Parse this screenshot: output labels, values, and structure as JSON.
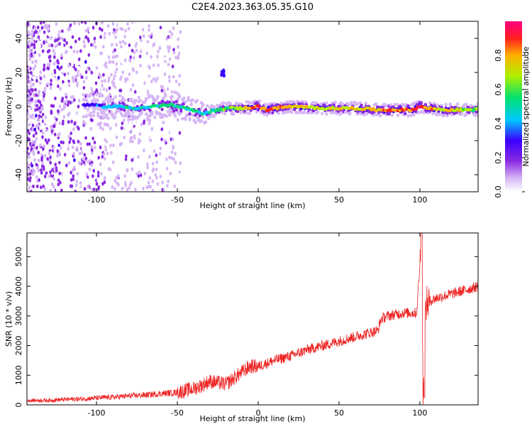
{
  "title": "C2E4.2023.363.05.35.G10",
  "chart_data": [
    {
      "type": "heatmap",
      "title": "",
      "xlabel": "Height of straight line (km)",
      "ylabel": "Frequency (Hz)",
      "xlim": [
        -143,
        136
      ],
      "ylim": [
        -50,
        50
      ],
      "x_ticks": [
        "-100",
        "-50",
        "0",
        "50",
        "100"
      ],
      "y_ticks": [
        "-40",
        "-20",
        "0",
        "20",
        "40"
      ],
      "colorbar": {
        "label": "Normalized spectral amplitude",
        "range": [
          0,
          1
        ],
        "ticks": [
          "0.0",
          "0.2",
          "0.4",
          "0.6",
          "0.8"
        ],
        "colormap": [
          "#ffffff",
          "#d6b6f5",
          "#8a2be2",
          "#3a00ff",
          "#00c8ff",
          "#00e070",
          "#b0f000",
          "#ffb000",
          "#ff2020",
          "#ff0080"
        ]
      },
      "ridge": {
        "x": [
          -105,
          -95,
          -85,
          -75,
          -65,
          -55,
          -45,
          -35,
          -30,
          -20,
          -10,
          0,
          5,
          10,
          20,
          40,
          60,
          75,
          85,
          95,
          100,
          105,
          115,
          125,
          136
        ],
        "frequency": [
          1,
          0,
          0,
          -1,
          0,
          1,
          -1,
          -4,
          -3,
          -1,
          -1,
          0,
          -2,
          -1,
          0,
          -1,
          -1,
          -2,
          -2,
          -2,
          0,
          -1,
          -2,
          -2,
          -2
        ],
        "amplitude": [
          0.35,
          0.45,
          0.5,
          0.5,
          0.55,
          0.6,
          0.55,
          0.5,
          0.55,
          0.6,
          0.7,
          0.95,
          0.9,
          0.85,
          0.8,
          0.75,
          0.75,
          0.8,
          0.85,
          0.9,
          0.95,
          0.85,
          0.75,
          0.7,
          0.65
        ]
      },
      "grid": false
    },
    {
      "type": "line",
      "title": "",
      "xlabel": "Height of straight line (km)",
      "ylabel": "SNR (10 * v/v)",
      "xlim": [
        -143,
        136
      ],
      "ylim": [
        0,
        5800
      ],
      "x_ticks": [
        "-100",
        "-50",
        "0",
        "50",
        "100"
      ],
      "y_ticks": [
        "0",
        "1000",
        "2000",
        "3000",
        "4000",
        "5000"
      ],
      "color": "#ee2222",
      "series": [
        {
          "x": [
            -143,
            -130,
            -120,
            -110,
            -100,
            -90,
            -80,
            -70,
            -60,
            -50,
            -45,
            -40,
            -35,
            -30,
            -25,
            -20,
            -15,
            -10,
            -5,
            0,
            5,
            10,
            20,
            30,
            40,
            50,
            60,
            70,
            74,
            76,
            80,
            90,
            98,
            101,
            102,
            103,
            104,
            106,
            110,
            120,
            130,
            136
          ],
          "values": [
            150,
            150,
            180,
            200,
            230,
            260,
            300,
            330,
            380,
            420,
            480,
            550,
            650,
            800,
            750,
            700,
            900,
            1100,
            1300,
            1300,
            1400,
            1500,
            1650,
            1850,
            2000,
            2150,
            2300,
            2450,
            2500,
            2900,
            3000,
            3100,
            3100,
            5500,
            300,
            2700,
            3400,
            3500,
            3600,
            3750,
            3900,
            4000
          ]
        }
      ],
      "grid": false
    }
  ]
}
